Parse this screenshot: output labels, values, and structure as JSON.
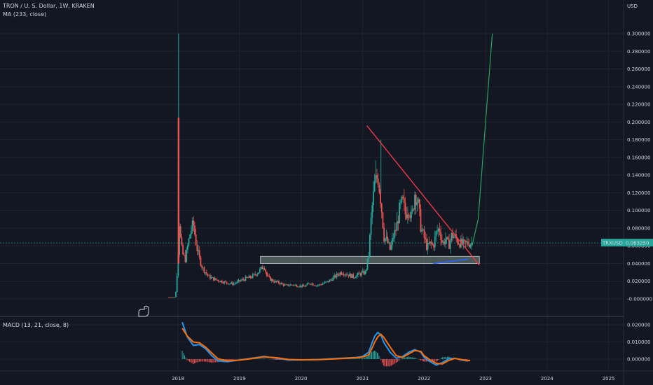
{
  "header": {
    "symbol_line": "TRON / U. S. Dollar, 1W, KRAKEN",
    "indicator_line": "MA (233, close)",
    "macd_label": "MACD (13, 21, close, 8)"
  },
  "colors": {
    "background": "#131722",
    "up": "#26a69a",
    "down": "#ef5350",
    "trendline": "#f23645",
    "projection": "#26a65b",
    "ma": "#2962ff",
    "macd_line": "#2196f3",
    "signal_line": "#ff6d00",
    "zone_fill": "#8fa89a",
    "price_tag_bg": "#26a69a"
  },
  "chart_data": [
    {
      "type": "candlestick",
      "title": "TRON / U. S. Dollar, 1W, KRAKEN",
      "y_axis_unit": "USD",
      "y_ticks": [
        "0.300000",
        "0.280000",
        "0.260000",
        "0.240000",
        "0.220000",
        "0.200000",
        "0.180000",
        "0.160000",
        "0.140000",
        "0.120000",
        "0.100000",
        "0.080000",
        "0.060000",
        "0.040000",
        "0.020000",
        "-0.000000"
      ],
      "y_tick_values": [
        0.3,
        0.28,
        0.26,
        0.24,
        0.22,
        0.2,
        0.18,
        0.16,
        0.14,
        0.12,
        0.1,
        0.08,
        0.06,
        0.04,
        0.02,
        0.0
      ],
      "ylim": [
        -0.012,
        0.33
      ],
      "x_ticks": [
        "2018",
        "2019",
        "2020",
        "2021",
        "2022",
        "2023",
        "2024",
        "2025"
      ],
      "x_tick_years": [
        2018,
        2019,
        2020,
        2021,
        2022,
        2023,
        2024,
        2025
      ],
      "xlim": [
        2017.18,
        2025.3
      ],
      "price_series": {
        "year": [
          2017.85,
          2017.96,
          2018.0,
          2018.02,
          2018.05,
          2018.08,
          2018.12,
          2018.16,
          2018.2,
          2018.25,
          2018.3,
          2018.35,
          2018.4,
          2018.45,
          2018.5,
          2018.6,
          2018.7,
          2018.8,
          2018.9,
          2019.0,
          2019.1,
          2019.2,
          2019.3,
          2019.4,
          2019.45,
          2019.55,
          2019.65,
          2019.75,
          2019.85,
          2019.95,
          2020.05,
          2020.15,
          2020.25,
          2020.35,
          2020.45,
          2020.55,
          2020.65,
          2020.75,
          2020.85,
          2020.95,
          2021.05,
          2021.1,
          2021.15,
          2021.2,
          2021.25,
          2021.3,
          2021.35,
          2021.4,
          2021.45,
          2021.5,
          2021.55,
          2021.6,
          2021.65,
          2021.7,
          2021.75,
          2021.8,
          2021.85,
          2021.9,
          2021.95,
          2022.0,
          2022.05,
          2022.1,
          2022.15,
          2022.2,
          2022.25,
          2022.3,
          2022.35,
          2022.4,
          2022.45,
          2022.5,
          2022.55,
          2022.6,
          2022.65,
          2022.7,
          2022.78
        ],
        "price": [
          0.002,
          0.002,
          0.045,
          0.09,
          0.06,
          0.05,
          0.045,
          0.06,
          0.075,
          0.085,
          0.06,
          0.045,
          0.035,
          0.03,
          0.025,
          0.022,
          0.02,
          0.018,
          0.017,
          0.02,
          0.023,
          0.025,
          0.03,
          0.038,
          0.025,
          0.02,
          0.018,
          0.015,
          0.016,
          0.015,
          0.014,
          0.018,
          0.015,
          0.017,
          0.02,
          0.025,
          0.03,
          0.028,
          0.025,
          0.028,
          0.03,
          0.05,
          0.1,
          0.13,
          0.14,
          0.11,
          0.07,
          0.065,
          0.055,
          0.07,
          0.08,
          0.1,
          0.11,
          0.095,
          0.105,
          0.09,
          0.12,
          0.11,
          0.08,
          0.07,
          0.058,
          0.062,
          0.06,
          0.075,
          0.08,
          0.062,
          0.068,
          0.06,
          0.072,
          0.07,
          0.065,
          0.063,
          0.061,
          0.063,
          0.0633
        ],
        "spike": {
          "year": 2018.01,
          "high": 0.3,
          "wick2": 0.205
        },
        "peak_2021": {
          "year": 2021.3,
          "high": 0.18
        }
      },
      "ma_233": {
        "year": [
          2022.15,
          2022.72
        ],
        "value": [
          0.04,
          0.045
        ]
      },
      "trendline": {
        "from": [
          2021.07,
          0.196
        ],
        "to": [
          2022.9,
          0.038
        ]
      },
      "projection": {
        "from": [
          2022.78,
          0.06
        ],
        "to": [
          2023.11,
          0.3
        ]
      },
      "support_zone": {
        "x_range": [
          2019.34,
          2022.9
        ],
        "y_range": [
          0.04,
          0.048
        ]
      },
      "last_price": {
        "symbol": "TRXUSD",
        "value": "0.063250",
        "numeric": 0.06325
      }
    },
    {
      "type": "line",
      "title": "MACD (13, 21, close, 8)",
      "y_ticks": [
        "0.020000",
        "0.010000",
        "0.000000"
      ],
      "y_tick_values": [
        0.02,
        0.01,
        0.0
      ],
      "ylim": [
        -0.0045,
        0.022
      ],
      "xlim": [
        2017.18,
        2025.3
      ],
      "series": [
        {
          "key": "macd",
          "year": [
            2018.07,
            2018.15,
            2018.25,
            2018.35,
            2018.45,
            2018.55,
            2018.65,
            2018.8,
            2019.0,
            2019.2,
            2019.4,
            2019.6,
            2019.8,
            2020.0,
            2020.3,
            2020.6,
            2020.9,
            2021.0,
            2021.1,
            2021.15,
            2021.2,
            2021.25,
            2021.3,
            2021.35,
            2021.45,
            2021.55,
            2021.65,
            2021.75,
            2021.85,
            2021.95,
            2022.0,
            2022.1,
            2022.2,
            2022.3,
            2022.4,
            2022.5,
            2022.6,
            2022.7,
            2022.75
          ],
          "value": [
            0.0215,
            0.013,
            0.008,
            0.0085,
            0.006,
            0.002,
            -0.001,
            -0.0015,
            -0.0005,
            0.0005,
            0.0015,
            0.0005,
            -0.0005,
            -0.0005,
            -0.0002,
            0.0004,
            0.001,
            0.0015,
            0.004,
            0.009,
            0.0135,
            0.0155,
            0.014,
            0.0095,
            0.004,
            0.0005,
            0.0015,
            0.004,
            0.0055,
            0.004,
            0.001,
            -0.0015,
            -0.0035,
            -0.002,
            0.0002,
            0.0005,
            -0.0005,
            -0.001,
            -0.0008
          ]
        },
        {
          "key": "signal",
          "year": [
            2018.07,
            2018.15,
            2018.25,
            2018.35,
            2018.45,
            2018.55,
            2018.65,
            2018.8,
            2019.0,
            2019.2,
            2019.4,
            2019.6,
            2019.8,
            2020.0,
            2020.3,
            2020.6,
            2020.9,
            2021.0,
            2021.1,
            2021.15,
            2021.2,
            2021.25,
            2021.3,
            2021.35,
            2021.45,
            2021.55,
            2021.65,
            2021.75,
            2021.85,
            2021.95,
            2022.0,
            2022.1,
            2022.2,
            2022.3,
            2022.4,
            2022.5,
            2022.6,
            2022.7,
            2022.75
          ],
          "value": [
            0.018,
            0.0135,
            0.01,
            0.0095,
            0.007,
            0.0035,
            0.0002,
            -0.001,
            -0.0006,
            0.0003,
            0.0013,
            0.0008,
            -0.0002,
            -0.0004,
            -0.0003,
            0.0002,
            0.0008,
            0.0012,
            0.0025,
            0.006,
            0.01,
            0.013,
            0.0145,
            0.0125,
            0.007,
            0.002,
            0.001,
            0.003,
            0.005,
            0.0045,
            0.002,
            -0.0005,
            -0.0025,
            -0.0028,
            -0.0008,
            0.0004,
            -0.0002,
            -0.0008,
            -0.0008
          ]
        }
      ]
    }
  ]
}
